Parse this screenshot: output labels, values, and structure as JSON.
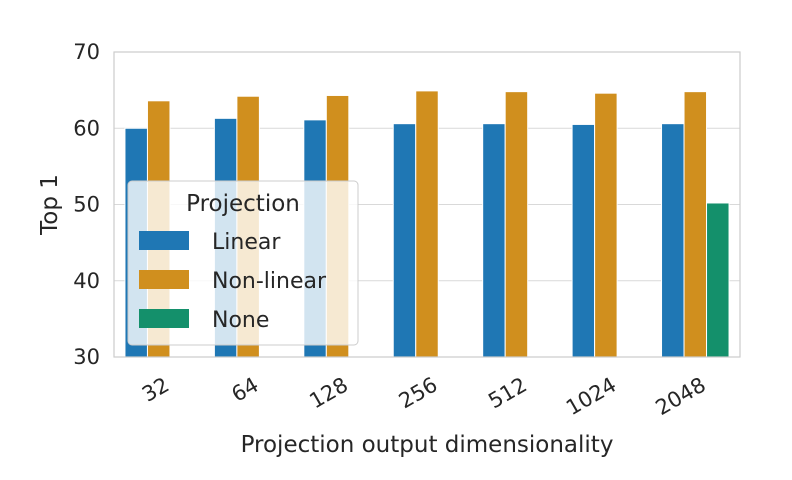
{
  "chart_data": {
    "type": "bar",
    "xlabel": "Projection output dimensionality",
    "ylabel": "Top 1",
    "ylim": [
      30,
      70
    ],
    "yticks": [
      30,
      40,
      50,
      60,
      70
    ],
    "categories": [
      "32",
      "64",
      "128",
      "256",
      "512",
      "1024",
      "2048"
    ],
    "grid": true,
    "legend": {
      "title": "Projection",
      "position": "center-left"
    },
    "series": [
      {
        "name": "Linear",
        "color": "#1F77B4",
        "values": [
          60.0,
          61.3,
          61.1,
          60.6,
          60.6,
          60.5,
          60.6
        ]
      },
      {
        "name": "Non-linear",
        "color": "#D08F1E",
        "values": [
          63.6,
          64.2,
          64.3,
          64.9,
          64.8,
          64.6,
          64.8
        ]
      },
      {
        "name": "None",
        "color": "#14906B",
        "values": [
          null,
          null,
          null,
          null,
          null,
          null,
          50.2
        ]
      }
    ]
  }
}
